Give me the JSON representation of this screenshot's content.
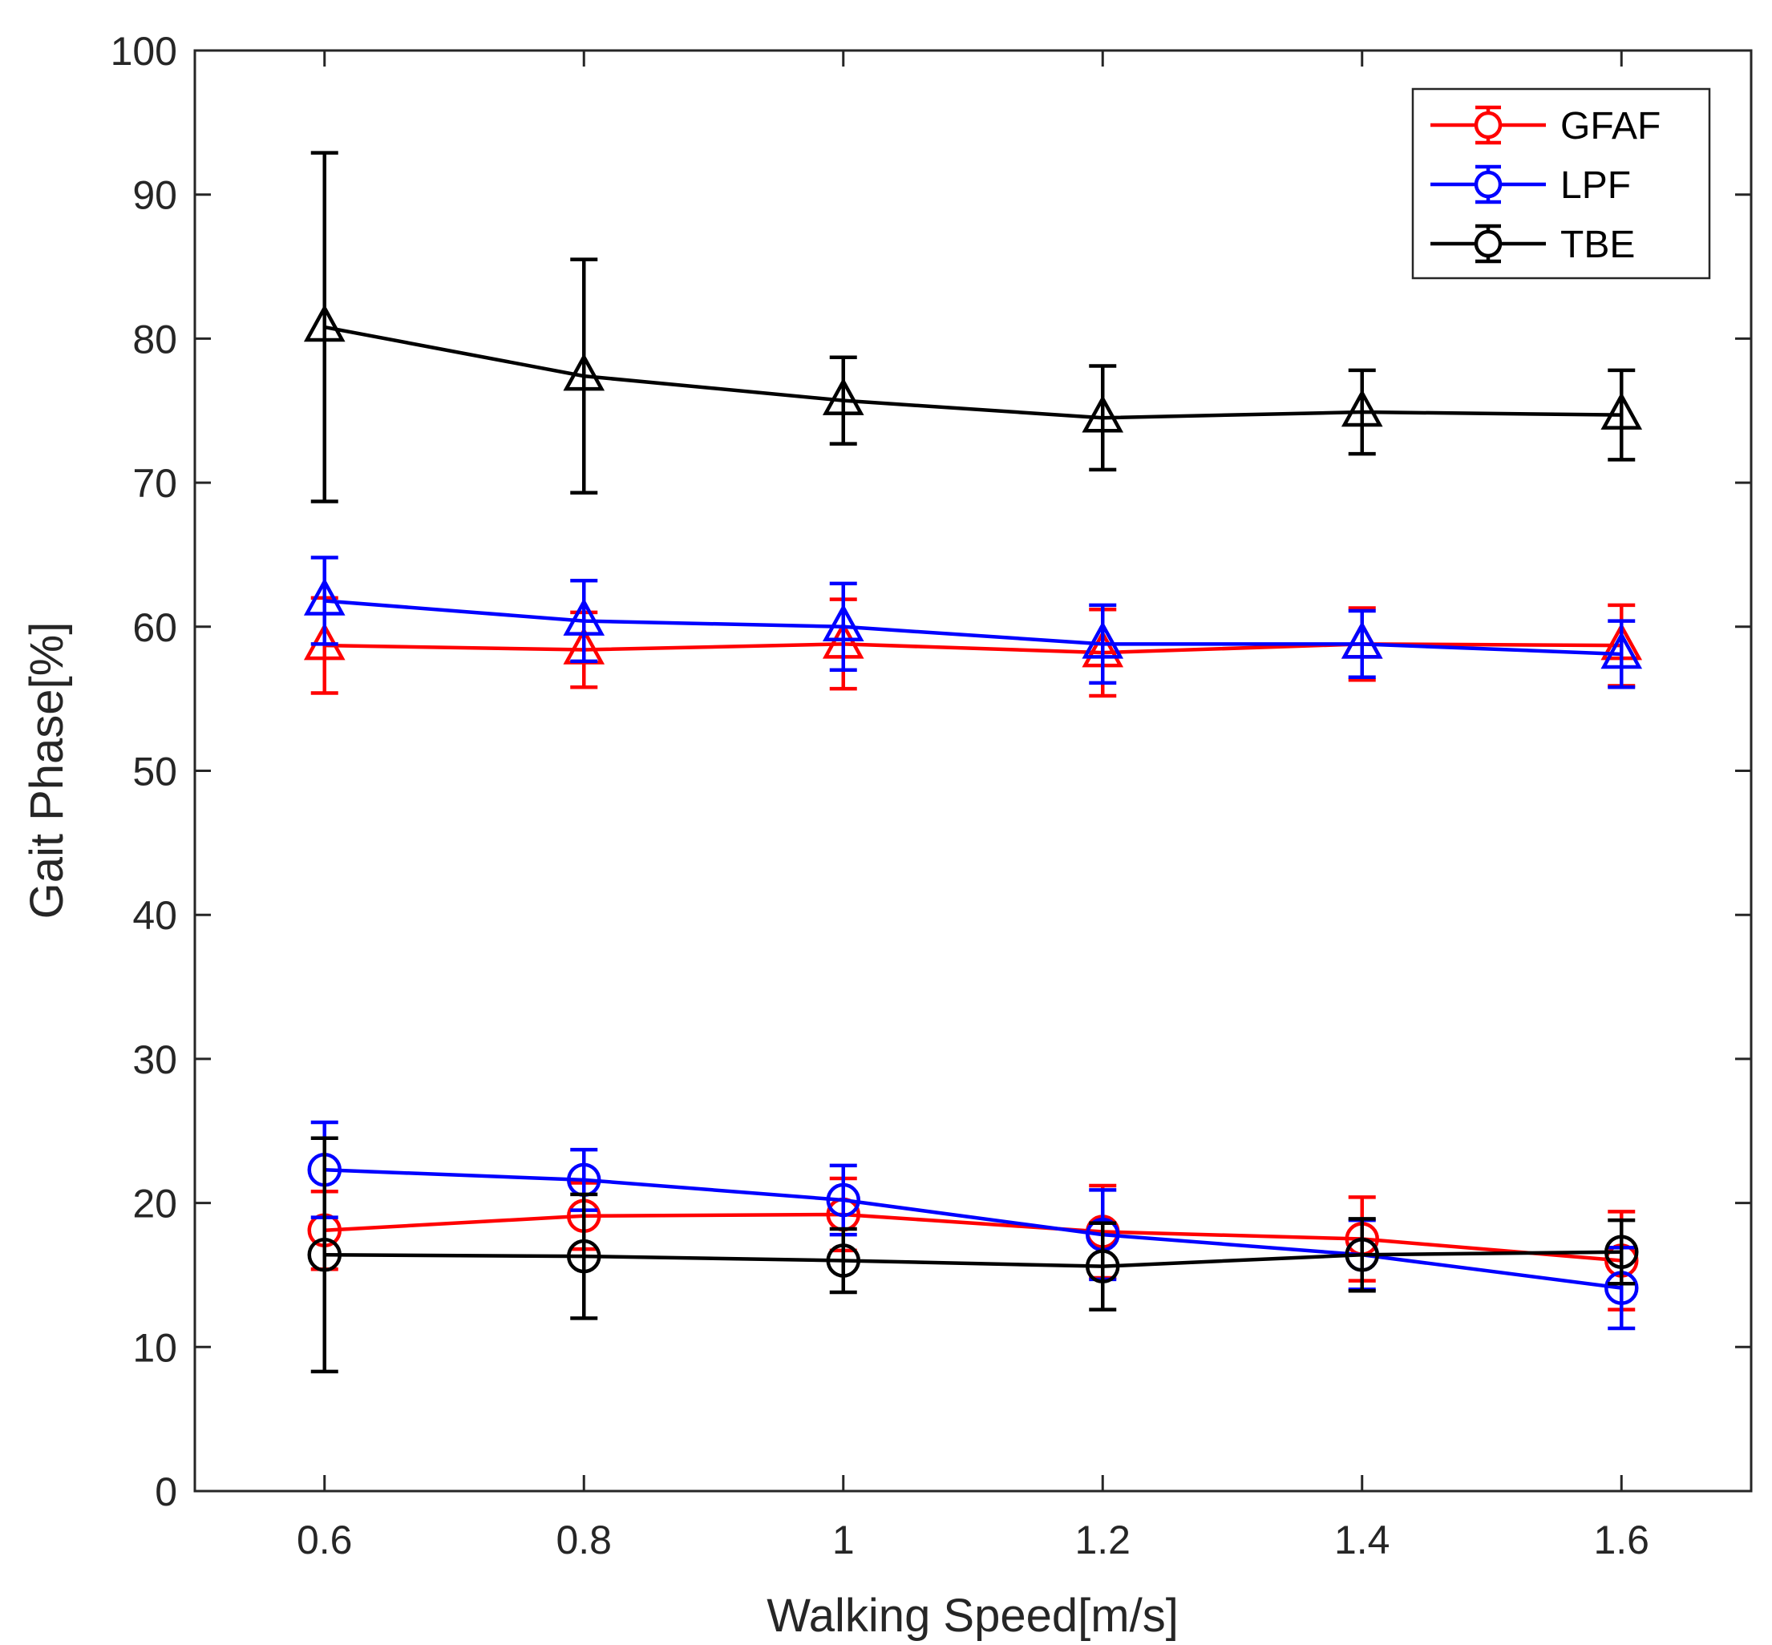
{
  "chart_data": {
    "type": "line",
    "xlabel": "Walking Speed[m/s]",
    "ylabel": "Gait Phase[%]",
    "xlim": [
      0.5,
      1.7
    ],
    "ylim": [
      0,
      100
    ],
    "x": [
      0.6,
      0.8,
      1.0,
      1.2,
      1.4,
      1.6
    ],
    "xticks": [
      "0.6",
      "0.8",
      "1",
      "1.2",
      "1.4",
      "1.6"
    ],
    "yticks": [
      "0",
      "10",
      "20",
      "30",
      "40",
      "50",
      "60",
      "70",
      "80",
      "90",
      "100"
    ],
    "legend": {
      "position": "top-right",
      "entries": [
        {
          "name": "GFAF",
          "color": "#ff0000"
        },
        {
          "name": "LPF",
          "color": "#0000ff"
        },
        {
          "name": "TBE",
          "color": "#000000"
        }
      ]
    },
    "series": [
      {
        "group": "GFAF",
        "color": "#ff0000",
        "marker": "triangle",
        "values": [
          58.7,
          58.4,
          58.8,
          58.2,
          58.8,
          58.7
        ],
        "errors": [
          3.3,
          2.6,
          3.1,
          3.0,
          2.5,
          2.8
        ]
      },
      {
        "group": "LPF",
        "color": "#0000ff",
        "marker": "triangle",
        "values": [
          61.8,
          60.4,
          60.0,
          58.8,
          58.8,
          58.1
        ],
        "errors": [
          3.0,
          2.8,
          3.0,
          2.7,
          2.3,
          2.3
        ]
      },
      {
        "group": "TBE",
        "color": "#000000",
        "marker": "triangle",
        "values": [
          80.8,
          77.4,
          75.7,
          74.5,
          74.9,
          74.7
        ],
        "errors": [
          12.1,
          8.1,
          3.0,
          3.6,
          2.9,
          3.1
        ]
      },
      {
        "group": "GFAF",
        "color": "#ff0000",
        "marker": "circle",
        "values": [
          18.1,
          19.1,
          19.2,
          18.0,
          17.5,
          16.0
        ],
        "errors": [
          2.7,
          2.3,
          2.5,
          3.2,
          2.9,
          3.4
        ]
      },
      {
        "group": "LPF",
        "color": "#0000ff",
        "marker": "circle",
        "values": [
          22.3,
          21.6,
          20.2,
          17.8,
          16.4,
          14.1
        ],
        "errors": [
          3.3,
          2.1,
          2.4,
          3.1,
          2.4,
          2.8
        ]
      },
      {
        "group": "TBE",
        "color": "#000000",
        "marker": "circle",
        "values": [
          16.4,
          16.3,
          16.0,
          15.6,
          16.4,
          16.6
        ],
        "errors": [
          8.1,
          4.3,
          2.2,
          3.0,
          2.5,
          2.2
        ]
      }
    ]
  }
}
